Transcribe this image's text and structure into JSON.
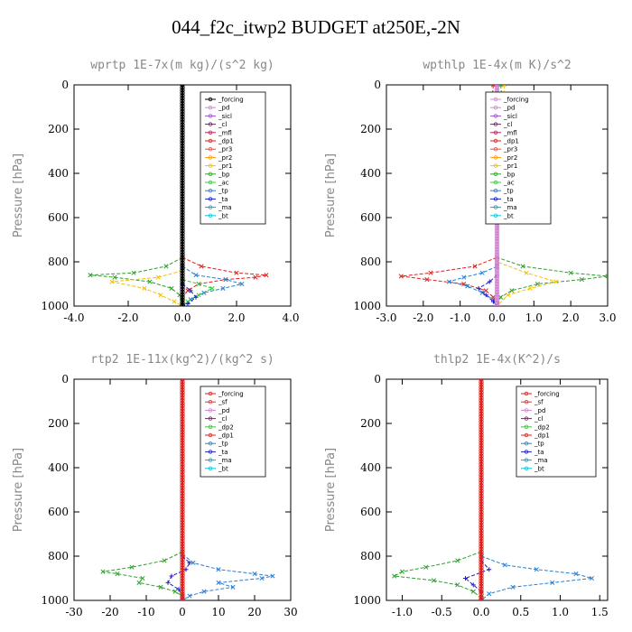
{
  "page_title": "044_f2c_itwp2  BUDGET at250E,-2N",
  "chart_data": [
    {
      "type": "line",
      "title": "wprtp  1E-7x(m kg)/(s^2 kg)",
      "ylabel": "Pressure [hPa]",
      "xlim": [
        -4,
        4
      ],
      "ylim": [
        0,
        1000
      ],
      "xticks": [
        "-4.0",
        "-2.0",
        "0.0",
        "2.0",
        "4.0"
      ],
      "yticks": [
        "0",
        "200",
        "400",
        "600",
        "800",
        "1000"
      ],
      "legend_position": "top-right",
      "legend": [
        "_forcing",
        "_pd",
        "_sicl",
        "_cl",
        "_mfl",
        "_dp1",
        "_pr3",
        "_pr2",
        "_pr1",
        "_bp",
        "_ac",
        "_tp",
        "_ta",
        "_ma",
        "_bt"
      ],
      "series": [
        {
          "name": "_bp",
          "color": "#2ca02c",
          "marker": "x",
          "y": [
            780,
            820,
            850,
            860,
            870,
            890,
            920,
            950,
            980,
            1000
          ],
          "x": [
            0,
            -0.6,
            -1.8,
            -3.4,
            -2.5,
            -1.2,
            -0.4,
            -0.1,
            0,
            0
          ]
        },
        {
          "name": "_dp1",
          "color": "#e0201c",
          "marker": "x",
          "y": [
            780,
            820,
            850,
            860,
            870,
            880,
            900,
            930,
            960,
            1000
          ],
          "x": [
            0,
            0.7,
            2.0,
            3.1,
            2.7,
            1.6,
            0.6,
            0.2,
            0,
            0
          ]
        },
        {
          "name": "_tp",
          "color": "#2a7fd0",
          "marker": "x",
          "y": [
            820,
            860,
            880,
            900,
            920,
            940,
            970,
            1000
          ],
          "x": [
            0,
            0.5,
            1.6,
            2.2,
            1.5,
            0.8,
            0.3,
            0
          ]
        },
        {
          "name": "_pr1",
          "color": "#f5c000",
          "marker": "x",
          "y": [
            840,
            870,
            890,
            920,
            950,
            980,
            1000
          ],
          "x": [
            0,
            -0.9,
            -2.6,
            -1.4,
            -0.8,
            -0.3,
            0
          ]
        },
        {
          "name": "_ac",
          "color": "#33cc33",
          "marker": "x",
          "y": [
            880,
            900,
            920,
            950,
            980,
            1000
          ],
          "x": [
            0,
            0.6,
            1.1,
            0.6,
            0.2,
            0
          ]
        },
        {
          "name": "_ta",
          "color": "#2020c0",
          "marker": "+",
          "y": [
            900,
            930,
            960,
            990,
            1000
          ],
          "x": [
            0,
            0.3,
            0.5,
            0.2,
            0
          ]
        },
        {
          "name": "_forcing",
          "color": "#000000",
          "marker": "o",
          "y": [
            0,
            1000
          ],
          "x": [
            0,
            0
          ]
        }
      ]
    },
    {
      "type": "line",
      "title": "wpthlp  1E-4x(m K)/s^2",
      "ylabel": "Pressure [hPa]",
      "xlim": [
        -3,
        3
      ],
      "ylim": [
        0,
        1000
      ],
      "xticks": [
        "-3.0",
        "-2.0",
        "-1.0",
        "0.0",
        "1.0",
        "2.0",
        "3.0"
      ],
      "yticks": [
        "0",
        "200",
        "400",
        "600",
        "800",
        "1000"
      ],
      "legend_position": "top-right",
      "legend": [
        "_forcing",
        "_pd",
        "_sicl",
        "_cl",
        "_mfl",
        "_dp1",
        "_pr3",
        "_pr2",
        "_pr1",
        "_bp",
        "_ac",
        "_tp",
        "_ta",
        "_ma",
        "_bt"
      ],
      "series": [
        {
          "name": "_dp1",
          "color": "#e0201c",
          "marker": "x",
          "y": [
            0,
            100,
            200,
            300,
            780,
            820,
            850,
            865,
            880,
            900,
            930,
            960,
            1000
          ],
          "x": [
            -0.1,
            -0.15,
            -0.1,
            0,
            0,
            -0.6,
            -1.8,
            -2.6,
            -1.9,
            -0.9,
            -0.3,
            -0.1,
            0
          ]
        },
        {
          "name": "_bp",
          "color": "#2ca02c",
          "marker": "x",
          "y": [
            0,
            100,
            200,
            300,
            780,
            820,
            850,
            865,
            880,
            900,
            930,
            960,
            1000
          ],
          "x": [
            0.1,
            0.15,
            0.25,
            0.05,
            0,
            0.7,
            2.0,
            3.0,
            2.3,
            1.1,
            0.4,
            0.1,
            0
          ]
        },
        {
          "name": "_pr1",
          "color": "#f5c000",
          "marker": "x",
          "y": [
            0,
            200,
            800,
            850,
            890,
            920,
            950,
            1000
          ],
          "x": [
            0.2,
            0.1,
            0,
            0.8,
            1.6,
            0.9,
            0.3,
            0
          ]
        },
        {
          "name": "_tp",
          "color": "#2a7fd0",
          "marker": "x",
          "y": [
            820,
            850,
            870,
            890,
            910,
            940,
            970,
            1000
          ],
          "x": [
            0,
            -0.4,
            -0.9,
            -1.3,
            -0.8,
            -0.4,
            -0.1,
            0
          ]
        },
        {
          "name": "_ta",
          "color": "#2020c0",
          "marker": "+",
          "y": [
            860,
            890,
            920,
            950,
            980,
            1000
          ],
          "x": [
            0,
            -0.2,
            -0.5,
            -0.3,
            -0.1,
            0
          ]
        },
        {
          "name": "_forcing",
          "color": "#cc88cc",
          "marker": "o",
          "y": [
            0,
            1000
          ],
          "x": [
            0,
            0
          ]
        }
      ]
    },
    {
      "type": "line",
      "title": "rtp2  1E-11x(kg^2)/(kg^2 s)",
      "ylabel": "Pressure [hPa]",
      "xlim": [
        -30,
        30
      ],
      "ylim": [
        0,
        1000
      ],
      "xticks": [
        "-30",
        "-20",
        "-10",
        "0",
        "10",
        "20",
        "30"
      ],
      "yticks": [
        "0",
        "200",
        "400",
        "600",
        "800",
        "1000"
      ],
      "legend_position": "top-right",
      "legend": [
        "_forcing",
        "_sf",
        "_pd",
        "_cl",
        "_dp2",
        "_dp1",
        "_tp",
        "_ta",
        "_ma",
        "_bt"
      ],
      "series": [
        {
          "name": "_dp1",
          "color": "#2ca02c",
          "marker": "x",
          "y": [
            780,
            820,
            850,
            870,
            880,
            900,
            920,
            940,
            960,
            980,
            1000
          ],
          "x": [
            0,
            -5,
            -14,
            -22,
            -18,
            -11,
            -12,
            -6,
            -2,
            0,
            0
          ]
        },
        {
          "name": "_tp",
          "color": "#2a7fd0",
          "marker": "x",
          "y": [
            790,
            830,
            860,
            880,
            890,
            900,
            920,
            940,
            960,
            980,
            1000
          ],
          "x": [
            0,
            3,
            10,
            20,
            25,
            22,
            10,
            14,
            6,
            2,
            0
          ]
        },
        {
          "name": "_ta",
          "color": "#2020c0",
          "marker": "+",
          "y": [
            800,
            830,
            860,
            890,
            920,
            950,
            980,
            1000
          ],
          "x": [
            0,
            2,
            1,
            -3,
            -4,
            -1,
            0,
            0
          ]
        },
        {
          "name": "_forcing",
          "color": "#e0201c",
          "marker": "o",
          "y": [
            0,
            1000
          ],
          "x": [
            0,
            0
          ]
        }
      ]
    },
    {
      "type": "line",
      "title": "thlp2  1E-4x(K^2)/s",
      "ylabel": "Pressure [hPa]",
      "xlim": [
        -1.2,
        1.6
      ],
      "ylim": [
        0,
        1000
      ],
      "xticks": [
        "-1.0",
        "-0.5",
        "0.0",
        "0.5",
        "1.0",
        "1.5"
      ],
      "yticks": [
        "0",
        "200",
        "400",
        "600",
        "800",
        "1000"
      ],
      "legend_position": "top-right",
      "legend": [
        "_forcing",
        "_sf",
        "_pd",
        "_cl",
        "_dp2",
        "_dp1",
        "_tp",
        "_ta",
        "_ma",
        "_bt"
      ],
      "series": [
        {
          "name": "_dp1",
          "color": "#2ca02c",
          "marker": "x",
          "y": [
            780,
            820,
            850,
            870,
            890,
            910,
            930,
            960,
            990,
            1000
          ],
          "x": [
            0,
            -0.3,
            -0.7,
            -1.0,
            -1.1,
            -0.6,
            -0.3,
            -0.1,
            0,
            0
          ]
        },
        {
          "name": "_tp",
          "color": "#2a7fd0",
          "marker": "x",
          "y": [
            800,
            840,
            860,
            880,
            900,
            920,
            940,
            970,
            1000
          ],
          "x": [
            0,
            0.3,
            0.7,
            1.2,
            1.4,
            0.9,
            0.4,
            0.1,
            0
          ]
        },
        {
          "name": "_ta",
          "color": "#2020c0",
          "marker": "+",
          "y": [
            820,
            860,
            900,
            930,
            960,
            1000
          ],
          "x": [
            0,
            0.1,
            -0.2,
            -0.1,
            0,
            0
          ]
        },
        {
          "name": "_forcing",
          "color": "#e0201c",
          "marker": "o",
          "y": [
            0,
            1000
          ],
          "x": [
            0,
            0
          ]
        }
      ]
    }
  ]
}
